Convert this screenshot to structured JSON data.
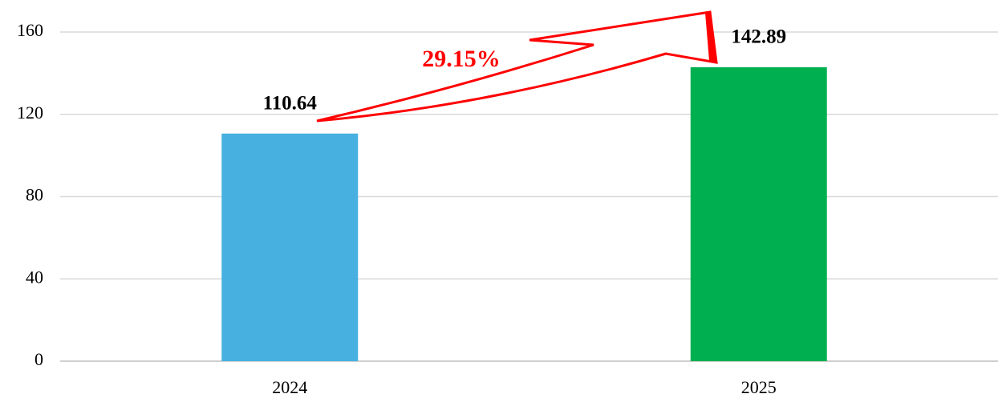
{
  "chart_data": {
    "type": "bar",
    "categories": [
      "2024",
      "2025"
    ],
    "values": [
      110.64,
      142.89
    ],
    "colors": [
      "#47b0e0",
      "#00b050"
    ],
    "annotation": "29.15%",
    "ylim": [
      0,
      160
    ],
    "yticks": [
      0,
      40,
      80,
      120,
      160
    ],
    "grid": true
  }
}
